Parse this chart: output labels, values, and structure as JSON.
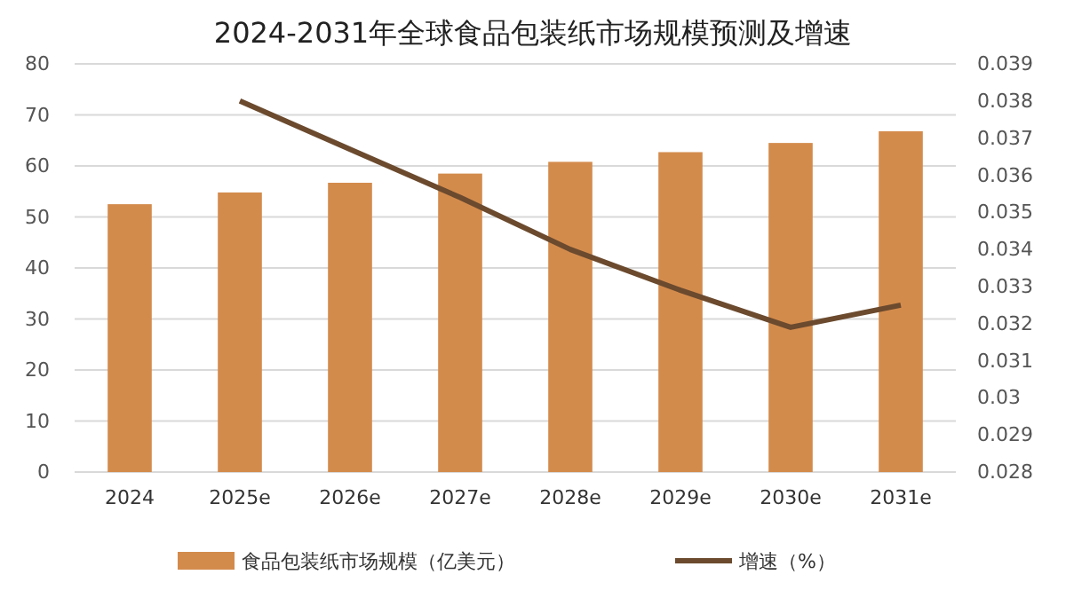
{
  "chart_data": {
    "type": "bar",
    "title": "2024-2031年全球食品包装纸市场规模预测及增速",
    "categories": [
      "2024",
      "2025e",
      "2026e",
      "2027e",
      "2028e",
      "2029e",
      "2030e",
      "2031e"
    ],
    "series": [
      {
        "name": "食品包装纸市场规模（亿美元）",
        "color": "#d38b4c",
        "values": [
          52.5,
          54.8,
          56.7,
          58.5,
          60.8,
          62.7,
          64.5,
          66.8
        ]
      },
      {
        "name": "增速（%）",
        "type": "line",
        "axis": "y2",
        "color": "#6b4a2e",
        "values": [
          null,
          0.038,
          0.0367,
          0.0354,
          0.034,
          0.0329,
          0.0319,
          0.0325
        ]
      }
    ],
    "ylim": [
      0,
      80
    ],
    "yticks": [
      0,
      10,
      20,
      30,
      40,
      50,
      60,
      70,
      80
    ],
    "y2lim": [
      0.028,
      0.039
    ],
    "y2ticks": [
      0.028,
      0.029,
      {
        "value": 0.03,
        "label": "0.03"
      },
      0.031,
      0.032,
      0.033,
      0.034,
      0.035,
      0.036,
      0.037,
      0.038,
      0.039
    ],
    "grid": "y",
    "legend": "bottom",
    "marker": "none",
    "line_style": "solid"
  }
}
